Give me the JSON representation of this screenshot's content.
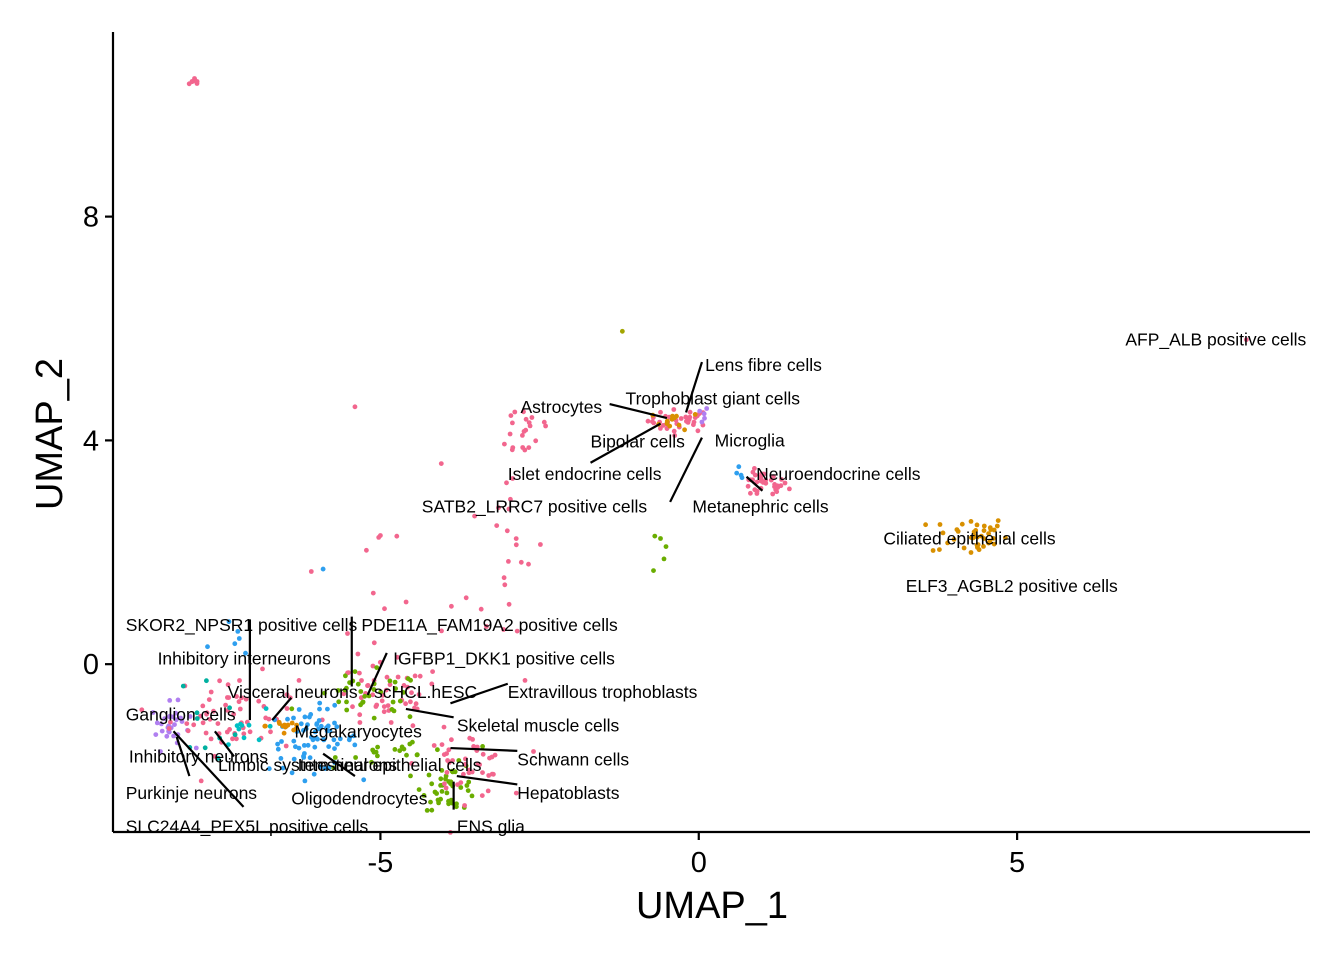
{
  "chart_data": {
    "type": "scatter",
    "title": "",
    "xlabel": "UMAP_1",
    "ylabel": "UMAP_2",
    "xlim": [
      -9.2,
      9.6
    ],
    "ylim": [
      -3.0,
      11.3
    ],
    "xticks": [
      -5,
      0,
      5
    ],
    "yticks": [
      0,
      4,
      8
    ],
    "grid": false,
    "legend": "none",
    "colors": {
      "pink": "#F564E3",
      "salmon": "#F8766D",
      "magenta_pink": "#F2668E",
      "blue": "#2E9FEF",
      "green": "#6AAD00",
      "olive": "#A3A500",
      "orange": "#E08B00",
      "gold": "#D89000",
      "purple": "#B07FF0",
      "teal": "#00B0A0",
      "cyan": "#00BFC4"
    },
    "clusters": [
      {
        "color": "magenta_pink",
        "cx": -7.9,
        "cy": 10.4,
        "sx": 0.05,
        "sy": 0.05,
        "n": 8
      },
      {
        "color": "magenta_pink",
        "cx": -0.3,
        "cy": 4.35,
        "sx": 0.25,
        "sy": 0.1,
        "n": 35
      },
      {
        "color": "gold",
        "cx": -0.35,
        "cy": 4.35,
        "sx": 0.18,
        "sy": 0.08,
        "n": 12
      },
      {
        "color": "purple",
        "cx": 0.05,
        "cy": 4.45,
        "sx": 0.05,
        "sy": 0.08,
        "n": 5
      },
      {
        "color": "magenta_pink",
        "cx": 1.0,
        "cy": 3.2,
        "sx": 0.2,
        "sy": 0.12,
        "n": 35
      },
      {
        "color": "blue",
        "cx": 0.7,
        "cy": 3.4,
        "sx": 0.06,
        "sy": 0.06,
        "n": 4
      },
      {
        "color": "gold",
        "cx": 4.25,
        "cy": 2.3,
        "sx": 0.3,
        "sy": 0.18,
        "n": 40
      },
      {
        "color": "magenta_pink",
        "cx": -2.7,
        "cy": 4.2,
        "sx": 0.25,
        "sy": 0.3,
        "n": 20
      },
      {
        "color": "magenta_pink",
        "cx": -3.0,
        "cy": 2.2,
        "sx": 0.3,
        "sy": 1.2,
        "n": 25
      },
      {
        "color": "green",
        "cx": -0.65,
        "cy": 2.2,
        "sx": 0.06,
        "sy": 0.25,
        "n": 5
      },
      {
        "color": "purple",
        "cx": -8.3,
        "cy": -1.1,
        "sx": 0.15,
        "sy": 0.2,
        "n": 30
      },
      {
        "color": "magenta_pink",
        "cx": -7.3,
        "cy": -0.9,
        "sx": 0.5,
        "sy": 0.35,
        "n": 60
      },
      {
        "color": "blue",
        "cx": -6.05,
        "cy": -1.35,
        "sx": 0.35,
        "sy": 0.28,
        "n": 70
      },
      {
        "color": "orange",
        "cx": -6.5,
        "cy": -1.1,
        "sx": 0.15,
        "sy": 0.12,
        "n": 14
      },
      {
        "color": "magenta_pink",
        "cx": -4.9,
        "cy": -0.6,
        "sx": 0.45,
        "sy": 0.3,
        "n": 45
      },
      {
        "color": "green",
        "cx": -5.2,
        "cy": -0.6,
        "sx": 0.45,
        "sy": 0.22,
        "n": 35
      },
      {
        "color": "green",
        "cx": -4.6,
        "cy": -1.55,
        "sx": 0.5,
        "sy": 0.12,
        "n": 20
      },
      {
        "color": "green",
        "cx": -3.9,
        "cy": -2.2,
        "sx": 0.22,
        "sy": 0.2,
        "n": 45
      },
      {
        "color": "magenta_pink",
        "cx": -3.7,
        "cy": -1.8,
        "sx": 0.35,
        "sy": 0.3,
        "n": 45
      },
      {
        "color": "teal",
        "cx": -7.7,
        "cy": -0.9,
        "sx": 0.25,
        "sy": 0.35,
        "n": 10
      },
      {
        "color": "cyan",
        "cx": -7.2,
        "cy": -1.2,
        "sx": 0.2,
        "sy": 0.2,
        "n": 10
      },
      {
        "color": "magenta_pink",
        "cx": -5.2,
        "cy": 0.8,
        "sx": 0.9,
        "sy": 0.9,
        "n": 14
      },
      {
        "color": "blue",
        "cx": -7.3,
        "cy": 0.3,
        "sx": 0.2,
        "sy": 0.3,
        "n": 6
      }
    ],
    "single_points": [
      {
        "x": 8.6,
        "y": 5.8,
        "color": "magenta_pink"
      },
      {
        "x": -1.2,
        "y": 5.95,
        "color": "olive"
      },
      {
        "x": -5.4,
        "y": 4.6,
        "color": "magenta_pink"
      },
      {
        "x": -5.9,
        "y": 1.7,
        "color": "blue"
      },
      {
        "x": -5.0,
        "y": 2.3,
        "color": "magenta_pink"
      }
    ],
    "labels": [
      {
        "text": "AFP_ALB positive cells",
        "x": 6.7,
        "y": 5.8
      },
      {
        "text": "Lens fibre cells",
        "x": 0.1,
        "y": 5.35
      },
      {
        "text": "Trophoblast giant cells",
        "x": -1.15,
        "y": 4.75
      },
      {
        "text": "Astrocytes",
        "x": -2.8,
        "y": 4.6
      },
      {
        "text": "Bipolar cells",
        "x": -1.7,
        "y": 3.98
      },
      {
        "text": "Microglia",
        "x": 0.25,
        "y": 4.0
      },
      {
        "text": "Islet endocrine cells",
        "x": -3.0,
        "y": 3.4
      },
      {
        "text": "Neuroendocrine cells",
        "x": 0.9,
        "y": 3.4
      },
      {
        "text": "SATB2_LRRC7 positive cells",
        "x": -4.35,
        "y": 2.82
      },
      {
        "text": "Metanephric cells",
        "x": -0.1,
        "y": 2.82
      },
      {
        "text": "Ciliated epithelial cells",
        "x": 2.9,
        "y": 2.25
      },
      {
        "text": "ELF3_AGBL2 positive cells",
        "x": 3.25,
        "y": 1.4
      },
      {
        "text": "SKOR2_NPSR1 positive cells",
        "x": -9.0,
        "y": 0.7
      },
      {
        "text": "PDE11A_FAM19A2 positive cells",
        "x": -5.3,
        "y": 0.7
      },
      {
        "text": "Inhibitory interneurons",
        "x": -8.5,
        "y": 0.1
      },
      {
        "text": "IGFBP1_DKK1 positive cells",
        "x": -4.8,
        "y": 0.1
      },
      {
        "text": "Visceral neurons",
        "x": -7.4,
        "y": -0.5
      },
      {
        "text": "scHCL.hESC",
        "x": -5.1,
        "y": -0.5
      },
      {
        "text": "Extravillous trophoblasts",
        "x": -3.0,
        "y": -0.5
      },
      {
        "text": "Ganglion cells",
        "x": -9.0,
        "y": -0.9
      },
      {
        "text": "Megakaryocytes",
        "x": -6.35,
        "y": -1.2
      },
      {
        "text": "Skeletal muscle cells",
        "x": -3.8,
        "y": -1.1
      },
      {
        "text": "Inhibitory neurons",
        "x": -8.95,
        "y": -1.65
      },
      {
        "text": "Limbic system neurons",
        "x": -7.55,
        "y": -1.8
      },
      {
        "text": "Intestinal epithelial cells",
        "x": -6.3,
        "y": -1.8
      },
      {
        "text": "Schwann cells",
        "x": -2.85,
        "y": -1.7
      },
      {
        "text": "Purkinje neurons",
        "x": -9.0,
        "y": -2.3
      },
      {
        "text": "Oligodendrocytes",
        "x": -6.4,
        "y": -2.4
      },
      {
        "text": "Hepatoblasts",
        "x": -2.85,
        "y": -2.3
      },
      {
        "text": "ENS glia",
        "x": -3.8,
        "y": -2.9
      },
      {
        "text": "SLC24A4_PEX5L positive cells",
        "x": -9.0,
        "y": -2.9
      }
    ],
    "leader_lines": [
      [
        0.05,
        5.4,
        -0.2,
        4.5
      ],
      [
        -1.4,
        4.65,
        -0.5,
        4.4
      ],
      [
        -1.7,
        3.6,
        -0.6,
        4.3
      ],
      [
        -0.45,
        2.9,
        0.05,
        4.05
      ],
      [
        0.75,
        3.35,
        1.0,
        3.1
      ],
      [
        -7.05,
        0.8,
        -7.05,
        -1.0
      ],
      [
        -5.45,
        0.85,
        -5.45,
        -0.4
      ],
      [
        -4.9,
        0.2,
        -5.2,
        -0.55
      ],
      [
        -3.0,
        -0.35,
        -3.9,
        -0.7
      ],
      [
        -3.85,
        -0.95,
        -4.6,
        -0.8
      ],
      [
        -6.4,
        -0.6,
        -6.7,
        -1.0
      ],
      [
        -2.85,
        -1.55,
        -3.9,
        -1.5
      ],
      [
        -2.85,
        -2.15,
        -3.8,
        -2.0
      ],
      [
        -3.85,
        -2.6,
        -3.85,
        -2.1
      ],
      [
        -5.4,
        -2.0,
        -5.9,
        -1.6
      ],
      [
        -7.3,
        -1.65,
        -7.6,
        -1.2
      ],
      [
        -8.0,
        -2.0,
        -8.2,
        -1.3
      ],
      [
        -7.15,
        -2.55,
        -8.25,
        -1.2
      ]
    ]
  }
}
